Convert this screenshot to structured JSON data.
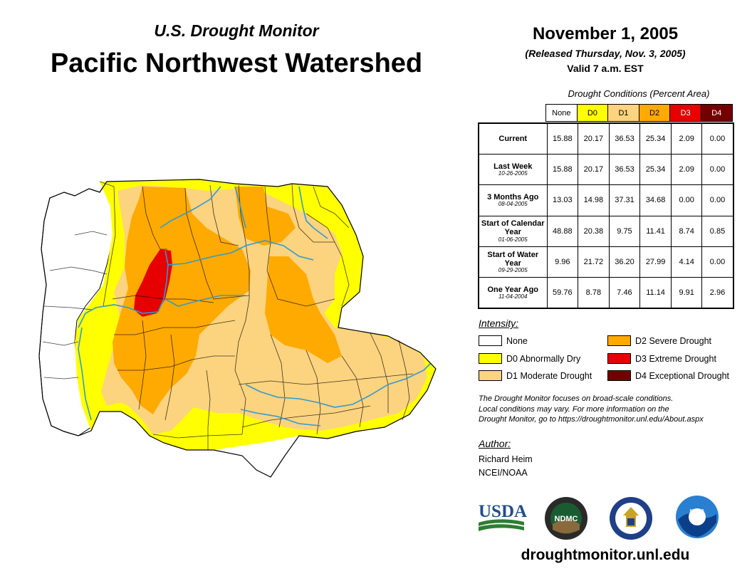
{
  "header": {
    "subtitle": "U.S. Drought Monitor",
    "title": "Pacific Northwest Watershed",
    "date": "November 1, 2005",
    "released": "(Released Thursday, Nov. 3, 2005)",
    "valid": "Valid 7 a.m. EST"
  },
  "table": {
    "caption": "Drought Conditions (Percent Area)",
    "columns": [
      {
        "label": "None",
        "color": "#ffffff"
      },
      {
        "label": "D0",
        "color": "#ffff00"
      },
      {
        "label": "D1",
        "color": "#fcd37f"
      },
      {
        "label": "D2",
        "color": "#ffaa00"
      },
      {
        "label": "D3",
        "color": "#e60000"
      },
      {
        "label": "D4",
        "color": "#730000"
      }
    ],
    "rows": [
      {
        "label": "Current",
        "values": [
          "15.88",
          "20.17",
          "36.53",
          "25.34",
          "2.09",
          "0.00"
        ]
      },
      {
        "label": "Last Week",
        "date": "10-26-2005",
        "values": [
          "15.88",
          "20.17",
          "36.53",
          "25.34",
          "2.09",
          "0.00"
        ]
      },
      {
        "label": "3 Months Ago",
        "date": "08-04-2005",
        "values": [
          "13.03",
          "14.98",
          "37.31",
          "34.68",
          "0.00",
          "0.00"
        ]
      },
      {
        "label": "Start of Calendar Year",
        "date": "01-06-2005",
        "values": [
          "48.88",
          "20.38",
          "9.75",
          "11.41",
          "8.74",
          "0.85"
        ]
      },
      {
        "label": "Start of Water Year",
        "date": "09-29-2005",
        "values": [
          "9.96",
          "21.72",
          "36.20",
          "27.99",
          "4.14",
          "0.00"
        ]
      },
      {
        "label": "One Year Ago",
        "date": "11-04-2004",
        "values": [
          "59.76",
          "8.78",
          "7.46",
          "11.14",
          "9.91",
          "2.96"
        ]
      }
    ]
  },
  "legend": {
    "caption": "Intensity:",
    "items": [
      {
        "label": "None",
        "color": "#ffffff"
      },
      {
        "label": "D0 Abnormally Dry",
        "color": "#ffff00"
      },
      {
        "label": "D1 Moderate Drought",
        "color": "#fcd37f"
      },
      {
        "label": "D2 Severe Drought",
        "color": "#ffaa00"
      },
      {
        "label": "D3 Extreme Drought",
        "color": "#e60000"
      },
      {
        "label": "D4 Exceptional Drought",
        "color": "#730000"
      }
    ]
  },
  "note": {
    "line1": "The Drought Monitor focuses on broad-scale conditions.",
    "line2": "Local conditions may vary. For more information on the",
    "line3": "Drought Monitor, go to https://droughtmonitor.unl.edu/About.aspx"
  },
  "author": {
    "caption": "Author:",
    "name": "Richard Heim",
    "org": "NCEI/NOAA"
  },
  "logos": {
    "usda": "USDA",
    "ndmc": "NDMC",
    "noaa": "NOAA"
  },
  "website": "droughtmonitor.unl.edu"
}
